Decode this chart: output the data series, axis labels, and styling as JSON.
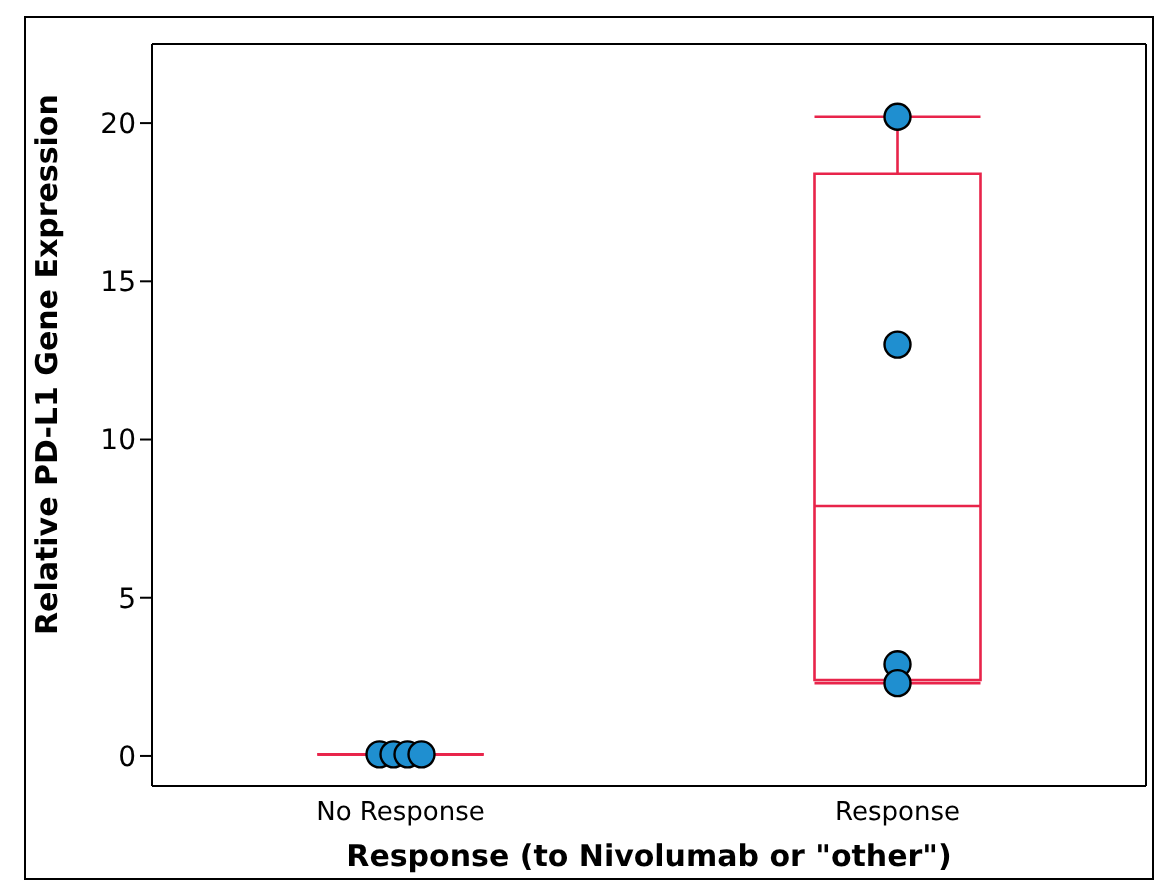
{
  "chart_data": {
    "type": "box",
    "xlabel": "Response (to Nivolumab or \"other\")",
    "ylabel": "Relative PD-L1 Gene Expression",
    "categories": [
      "No Response",
      "Response"
    ],
    "color": "#e8244a",
    "boxes": [
      {
        "low": 0.05,
        "q1": 0.05,
        "median": 0.05,
        "q3": 0.05,
        "high": 0.05
      },
      {
        "low": 2.3,
        "q1": 2.4,
        "median": 7.9,
        "q3": 18.4,
        "high": 20.2
      }
    ],
    "series": [
      {
        "type": "scatter",
        "color": "#1f8fd0",
        "x": [
          "No Response",
          "No Response",
          "No Response",
          "No Response",
          "Response",
          "Response",
          "Response",
          "Response"
        ],
        "values": [
          0.05,
          0.05,
          0.05,
          0.05,
          20.2,
          13,
          2.9,
          2.3
        ]
      }
    ],
    "ylim": [
      -0.95,
      22.5
    ],
    "yticks": [
      0,
      5,
      10,
      15,
      20
    ]
  }
}
